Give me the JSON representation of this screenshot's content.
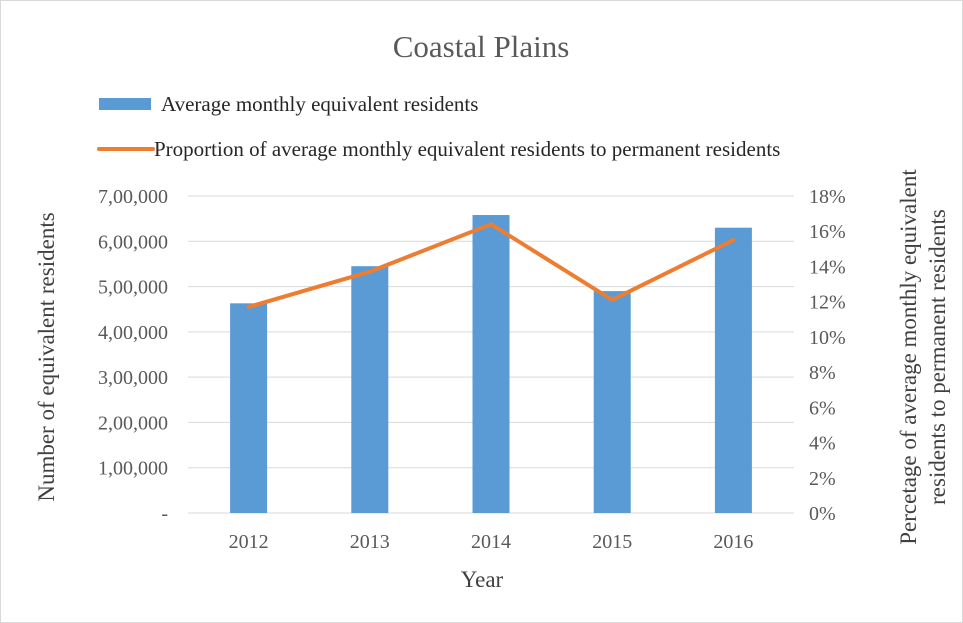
{
  "chart_data": {
    "type": "bar",
    "title": "Coastal Plains",
    "categories": [
      "2012",
      "2013",
      "2014",
      "2015",
      "2016"
    ],
    "xlabel": "Year",
    "ylabel": "Number of equivalent residents",
    "y2label_line1": "Percetage of average monthly equivalent",
    "y2label_line2": "residents to permanent residents",
    "ylim": [
      0,
      700000
    ],
    "y2lim": [
      0,
      0.18
    ],
    "y_ticks": [
      "-",
      "1,00,000",
      "2,00,000",
      "3,00,000",
      "4,00,000",
      "5,00,000",
      "6,00,000",
      "7,00,000"
    ],
    "y2_ticks": [
      "0%",
      "2%",
      "4%",
      "6%",
      "8%",
      "10%",
      "12%",
      "14%",
      "16%",
      "18%"
    ],
    "grid": true,
    "legend_position": "top",
    "series": [
      {
        "name": "Average monthly equivalent residents",
        "type": "bar",
        "axis": "left",
        "color": "#5b9bd5",
        "values": [
          463000,
          545000,
          658000,
          490000,
          630000
        ]
      },
      {
        "name": "Proportion of average monthly equivalent residents to permanent residents",
        "type": "line",
        "axis": "right",
        "color": "#ed7d31",
        "values": [
          0.117,
          0.137,
          0.164,
          0.121,
          0.155
        ]
      }
    ]
  }
}
